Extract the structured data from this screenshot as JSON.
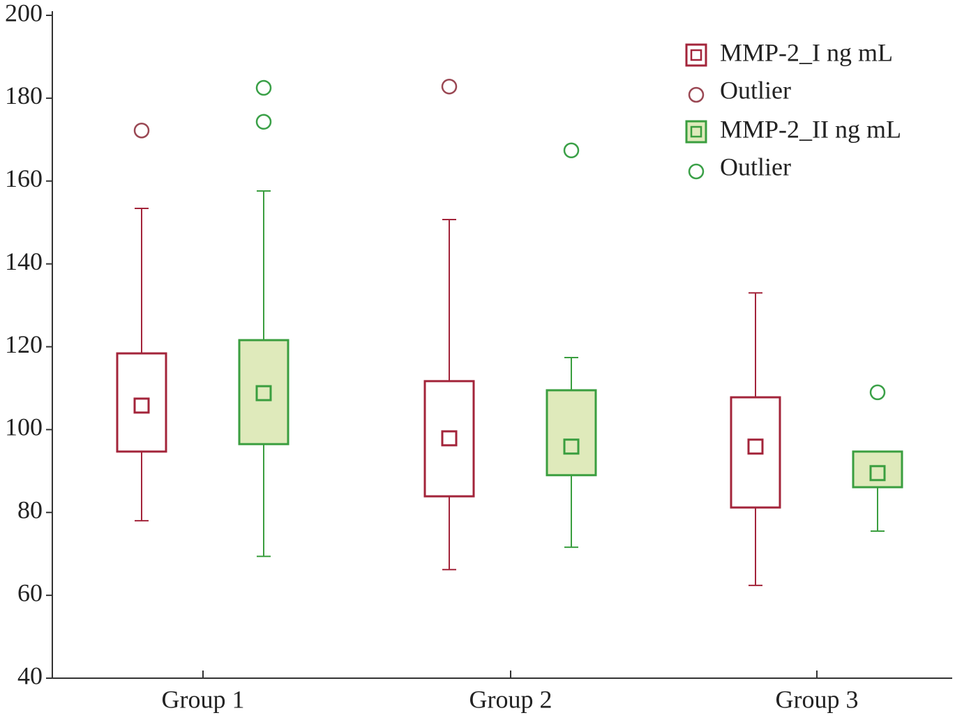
{
  "chart_data": {
    "type": "box",
    "categories": [
      "Group 1",
      "Group 2",
      "Group 3"
    ],
    "ylim": [
      40,
      200
    ],
    "yticks": [
      40,
      60,
      80,
      100,
      120,
      140,
      160,
      180,
      200
    ],
    "legend": "upper right",
    "series": [
      {
        "name": "MMP-2_I ng mL",
        "outlier_label": "Outlier",
        "color": "#a3243a",
        "box_fill": "#ffffff",
        "outlier_color": "#9a4753",
        "whisker_low": [
          78.0,
          66.2,
          62.4
        ],
        "q1": [
          94.7,
          83.9,
          81.2
        ],
        "median": [
          105.8,
          97.9,
          95.9
        ],
        "q3": [
          118.4,
          111.7,
          107.8
        ],
        "whisker_high": [
          153.4,
          150.7,
          133.0
        ],
        "outliers": [
          [
            172.2
          ],
          [
            182.8
          ],
          []
        ]
      },
      {
        "name": "MMP-2_II ng mL",
        "outlier_label": "Outlier",
        "color": "#3a9e3f",
        "box_fill": "#dfeabb",
        "outlier_color": "#3aa047",
        "whisker_low": [
          69.4,
          71.6,
          75.5
        ],
        "q1": [
          96.5,
          89.0,
          86.1
        ],
        "median": [
          108.8,
          95.9,
          89.5
        ],
        "q3": [
          121.6,
          109.5,
          94.7
        ],
        "whisker_high": [
          157.6,
          117.4,
          94.7
        ],
        "outliers": [
          [
            182.5,
            174.3
          ],
          [
            167.4
          ],
          [
            109.0
          ]
        ]
      }
    ]
  }
}
